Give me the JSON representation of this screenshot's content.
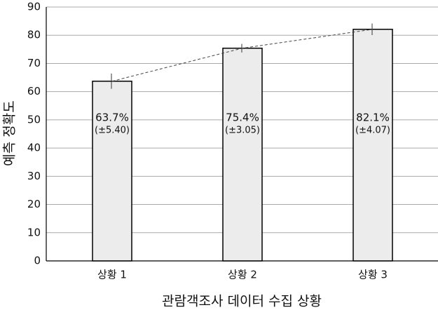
{
  "chart_data": {
    "type": "bar",
    "categories": [
      "상황 1",
      "상황 2",
      "상황 3"
    ],
    "values": [
      63.7,
      75.4,
      82.1
    ],
    "value_labels": [
      "63.7%",
      "75.4%",
      "82.1%"
    ],
    "errors": [
      5.4,
      3.05,
      4.07
    ],
    "error_labels": [
      "(±5.40)",
      "(±3.05)",
      "(±4.07)"
    ],
    "color": "#ececec",
    "x_label": "관람객조사 데이터 수집 상황",
    "y_label": "예측 정확도",
    "ylim": [
      0,
      90
    ],
    "yticks": [
      0,
      10,
      20,
      30,
      40,
      50,
      60,
      70,
      80,
      90
    ],
    "grid": true
  }
}
